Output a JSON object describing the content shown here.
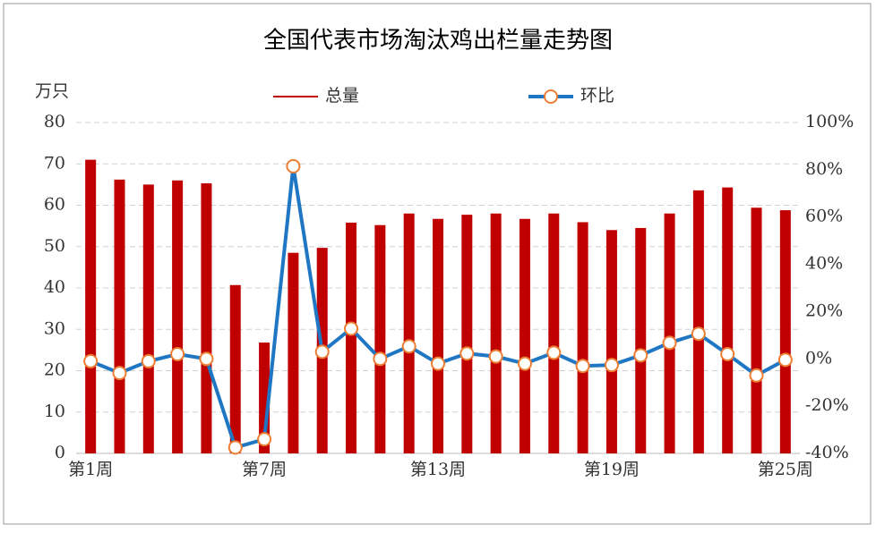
{
  "chart_data": {
    "type": "bar",
    "title": "全国代表市场淘汰鸡出栏量走势图",
    "y_label": "万只",
    "categories": [
      "第1周",
      null,
      null,
      null,
      null,
      null,
      "第7周",
      null,
      null,
      null,
      null,
      null,
      "第13周",
      null,
      null,
      null,
      null,
      null,
      "第19周",
      null,
      null,
      null,
      null,
      null,
      "第25周"
    ],
    "series": [
      {
        "name": "总量",
        "type": "bar",
        "color": "#c00000",
        "values": [
          71,
          66.2,
          65,
          66,
          65.3,
          40.7,
          26.8,
          48.5,
          49.7,
          55.8,
          55.2,
          58,
          56.7,
          57.7,
          58,
          56.7,
          58,
          55.9,
          54,
          54.5,
          58,
          63.6,
          64.3,
          59.4,
          58.8
        ]
      },
      {
        "name": "环比",
        "type": "line",
        "axis": "y2",
        "color": "#1f77c4",
        "marker_edge": "#ed7d31",
        "values": [
          -1,
          -6,
          -1,
          2,
          0,
          -37.5,
          -34,
          81.5,
          3,
          12.8,
          0,
          5.3,
          -2,
          2.3,
          1,
          -2,
          2.6,
          -3,
          -2.6,
          1.5,
          6.8,
          10.6,
          2,
          -7,
          -0.4
        ]
      }
    ],
    "ylim": [
      0,
      80
    ],
    "yticks": [
      0,
      10,
      20,
      30,
      40,
      50,
      60,
      70,
      80
    ],
    "y2lim": [
      -40,
      100
    ],
    "y2ticks": [
      {
        "value": -40,
        "label": "-40%"
      },
      {
        "value": -20,
        "label": "-20%"
      },
      {
        "value": 0,
        "label": "0%"
      },
      {
        "value": 20,
        "label": "20%"
      },
      {
        "value": 40,
        "label": "40%"
      },
      {
        "value": 60,
        "label": "60%"
      },
      {
        "value": 80,
        "label": "80%"
      },
      {
        "value": 100,
        "label": "100%"
      }
    ],
    "grid": true
  }
}
